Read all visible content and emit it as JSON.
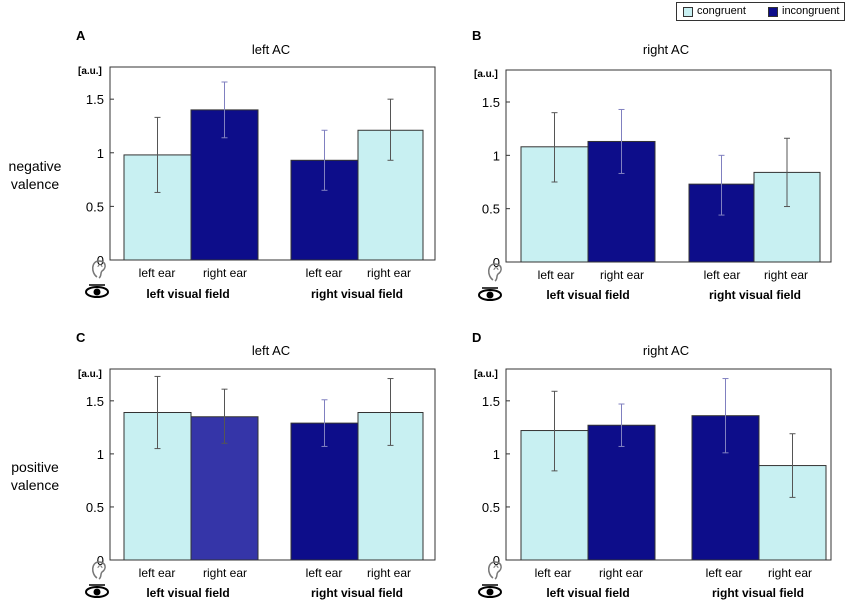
{
  "legend": {
    "congruent": "congruent",
    "incongruent": "incongruent"
  },
  "colors": {
    "congruent": "#c8f0f2",
    "incongruent": "#0d0d8a",
    "incongruent_light": "#3535a8",
    "frame": "#333333",
    "error_bar": "#555555"
  },
  "row_labels": {
    "top": [
      "negative",
      "valence"
    ],
    "bottom": [
      "positive",
      "valence"
    ]
  },
  "axis_unit": "[a.u.]",
  "chart_data": [
    {
      "type": "bar",
      "panel": "A",
      "title": "left AC",
      "ylabel": "[a.u.]",
      "ylim": [
        0,
        1.8
      ],
      "yticks": [
        "0",
        "0.5",
        "1",
        "1.5"
      ],
      "categories": [
        "left ear",
        "right ear",
        "left ear",
        "right ear"
      ],
      "groups": [
        "left visual field",
        "right visual field"
      ],
      "values": [
        0.98,
        1.4,
        0.93,
        1.21
      ],
      "errors": [
        [
          0.63,
          1.33
        ],
        [
          1.14,
          1.66
        ],
        [
          0.65,
          1.21
        ],
        [
          0.93,
          1.5
        ]
      ],
      "condition": [
        "congruent",
        "incongruent",
        "incongruent",
        "congruent"
      ]
    },
    {
      "type": "bar",
      "panel": "B",
      "title": "right AC",
      "ylabel": "[a.u.]",
      "ylim": [
        0,
        1.8
      ],
      "yticks": [
        "0",
        "0.5",
        "1",
        "1.5"
      ],
      "categories": [
        "left ear",
        "right ear",
        "left ear",
        "right ear"
      ],
      "groups": [
        "left visual field",
        "right visual field"
      ],
      "values": [
        1.08,
        1.13,
        0.73,
        0.84
      ],
      "errors": [
        [
          0.75,
          1.4
        ],
        [
          0.83,
          1.43
        ],
        [
          0.44,
          1.0
        ],
        [
          0.52,
          1.16
        ]
      ],
      "condition": [
        "congruent",
        "incongruent",
        "incongruent",
        "congruent"
      ]
    },
    {
      "type": "bar",
      "panel": "C",
      "title": "left AC",
      "ylabel": "[a.u.]",
      "ylim": [
        0,
        1.8
      ],
      "yticks": [
        "0",
        "0.5",
        "1",
        "1.5"
      ],
      "categories": [
        "left ear",
        "right ear",
        "left ear",
        "right ear"
      ],
      "groups": [
        "left visual field",
        "right visual field"
      ],
      "values": [
        1.39,
        1.35,
        1.29,
        1.39
      ],
      "errors": [
        [
          1.05,
          1.73
        ],
        [
          1.1,
          1.61
        ],
        [
          1.07,
          1.51
        ],
        [
          1.08,
          1.71
        ]
      ],
      "condition": [
        "congruent",
        "incongruent",
        "incongruent",
        "congruent"
      ]
    },
    {
      "type": "bar",
      "panel": "D",
      "title": "right AC",
      "ylabel": "[a.u.]",
      "ylim": [
        0,
        1.8
      ],
      "yticks": [
        "0",
        "0.5",
        "1",
        "1.5"
      ],
      "categories": [
        "left ear",
        "right ear",
        "left ear",
        "right ear"
      ],
      "groups": [
        "left visual field",
        "right visual field"
      ],
      "values": [
        1.22,
        1.27,
        1.36,
        0.89
      ],
      "errors": [
        [
          0.84,
          1.59
        ],
        [
          1.07,
          1.47
        ],
        [
          1.01,
          1.71
        ],
        [
          0.59,
          1.19
        ]
      ],
      "condition": [
        "congruent",
        "incongruent",
        "incongruent",
        "congruent"
      ]
    }
  ]
}
